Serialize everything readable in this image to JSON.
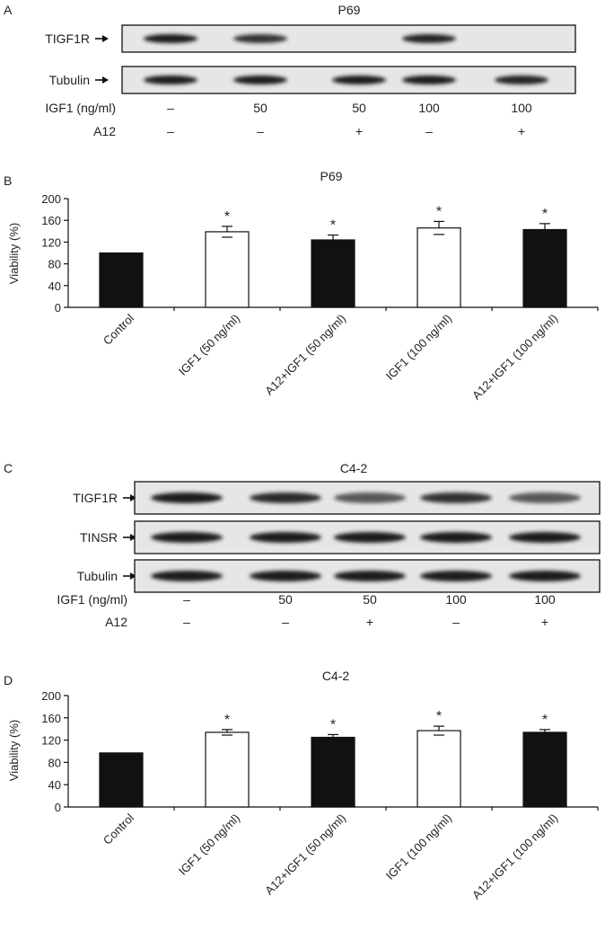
{
  "colors": {
    "ink": "#111111",
    "band": "#1a1a1a",
    "membrane": "#e6e6e6",
    "open_bar": "#ffffff",
    "filled_bar": "#111111"
  },
  "panel_a": {
    "letter": "A",
    "title": "P69",
    "blot_labels": [
      "TIGF1R",
      "Tubulin"
    ],
    "band_intensity": [
      [
        1.0,
        0.85,
        0.0,
        0.95,
        0.0
      ],
      [
        1.0,
        1.0,
        1.0,
        1.0,
        0.95
      ]
    ],
    "treat_rows": [
      {
        "label": "IGF1 (ng/ml)",
        "values": [
          "–",
          "50",
          "50",
          "100",
          "100"
        ]
      },
      {
        "label": "A12",
        "values": [
          "–",
          "–",
          "+",
          "–",
          "+"
        ]
      }
    ]
  },
  "panel_c": {
    "letter": "C",
    "title": "C4-2",
    "blot_labels": [
      "TIGF1R",
      "TINSR",
      "Tubulin"
    ],
    "band_intensity": [
      [
        1.0,
        0.9,
        0.6,
        0.85,
        0.6
      ],
      [
        1.0,
        1.0,
        1.0,
        1.0,
        1.0
      ],
      [
        1.0,
        1.0,
        1.0,
        1.0,
        1.0
      ]
    ],
    "treat_rows": [
      {
        "label": "IGF1 (ng/ml)",
        "values": [
          "–",
          "50",
          "50",
          "100",
          "100"
        ]
      },
      {
        "label": "A12",
        "values": [
          "–",
          "–",
          "+",
          "–",
          "+"
        ]
      }
    ]
  },
  "chart_data": [
    {
      "type": "bar",
      "letter": "B",
      "title": "P69",
      "ylabel": "Viability (%)",
      "ylim": [
        0,
        200
      ],
      "yticks": [
        0,
        40,
        80,
        120,
        160,
        200
      ],
      "categories": [
        "Control",
        "IGF1 (50 ng/ml)",
        "A12+IGF1 (50 ng/ml)",
        "IGF1 (100 ng/ml)",
        "A12+IGF1 (100 ng/ml)"
      ],
      "values": [
        100,
        139,
        124,
        146,
        143
      ],
      "errors": [
        0,
        10,
        9,
        12,
        11
      ],
      "fill": [
        "filled",
        "open",
        "filled",
        "open",
        "filled"
      ],
      "markers": [
        "",
        "*",
        "*",
        "*",
        "*"
      ]
    },
    {
      "type": "bar",
      "letter": "D",
      "title": "C4-2",
      "ylabel": "Viability (%)",
      "ylim": [
        0,
        200
      ],
      "yticks": [
        0,
        40,
        80,
        120,
        160,
        200
      ],
      "categories": [
        "Control",
        "IGF1 (50 ng/ml)",
        "A12+IGF1 (50 ng/ml)",
        "IGF1 (100 ng/ml)",
        "A12+IGF1 (100 ng/ml)"
      ],
      "values": [
        97,
        134,
        125,
        137,
        134
      ],
      "errors": [
        0,
        5,
        5,
        8,
        5
      ],
      "fill": [
        "filled",
        "open",
        "filled",
        "open",
        "filled"
      ],
      "markers": [
        "",
        "*",
        "*",
        "*",
        "*"
      ]
    }
  ]
}
